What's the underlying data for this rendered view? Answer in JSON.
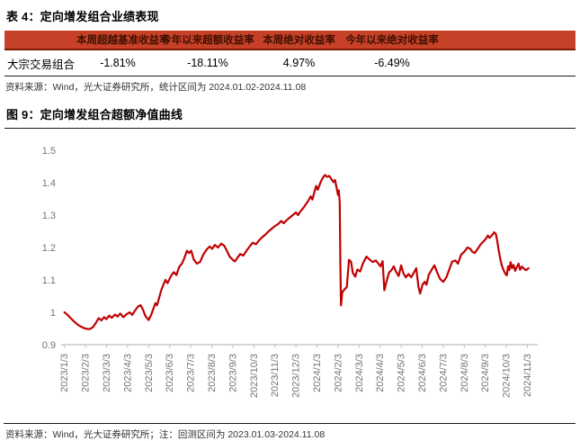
{
  "table": {
    "title": "表 4：定向增发组合业绩表现",
    "columns": [
      "本周超越基准收益率",
      "今年以来超额收益率",
      "本周绝对收益率",
      "今年以来绝对收益率"
    ],
    "rows": [
      {
        "label": "大宗交易组合",
        "values": [
          "-1.81%",
          "-18.11%",
          "4.97%",
          "-6.49%"
        ]
      }
    ],
    "source": "资料来源：Wind，光大证券研究所，统计区间为 2024.01.02-2024.11.08"
  },
  "figure": {
    "title": "图 9：定向增发组合超额净值曲线",
    "source": "资料来源：Wind，光大证券研究所；注：回测区间为 2023.01.03-2024.11.08"
  },
  "colors": {
    "table_header_bg": "#c64127",
    "table_header_border": "#7e1a02",
    "table_header_text": "#3f1000",
    "line": "#c00000",
    "axis": "#bfbfbf",
    "tick_label": "#737373",
    "rule": "#1a1a1a"
  },
  "chart_data": {
    "type": "line",
    "title": "定向增发组合超额净值曲线",
    "xlabel": "",
    "ylabel": "",
    "ylim": [
      0.9,
      1.5
    ],
    "grid": false,
    "legend": "none",
    "y_ticks": [
      {
        "v": 0.9,
        "label": "0.9"
      },
      {
        "v": 1.0,
        "label": "1"
      },
      {
        "v": 1.1,
        "label": "1.1"
      },
      {
        "v": 1.2,
        "label": "1.2"
      },
      {
        "v": 1.3,
        "label": "1.3"
      },
      {
        "v": 1.4,
        "label": "1.4"
      },
      {
        "v": 1.5,
        "label": "1.5"
      }
    ],
    "x_tick_labels": [
      "2023/1/3",
      "2023/2/3",
      "2023/3/3",
      "2023/4/3",
      "2023/5/3",
      "2023/6/3",
      "2023/7/3",
      "2023/8/3",
      "2023/9/3",
      "2023/10/3",
      "2023/11/3",
      "2023/12/3",
      "2024/1/3",
      "2024/2/3",
      "2024/3/3",
      "2024/4/3",
      "2024/5/3",
      "2024/6/3",
      "2024/7/3",
      "2024/8/3",
      "2024/9/3",
      "2024/10/3",
      "2024/11/3"
    ],
    "series": [
      {
        "name": "定向增发组合超额净值",
        "color": "#c00000",
        "points": [
          [
            0.0,
            1.0
          ],
          [
            0.12,
            0.994
          ],
          [
            0.25,
            0.985
          ],
          [
            0.4,
            0.975
          ],
          [
            0.55,
            0.966
          ],
          [
            0.72,
            0.958
          ],
          [
            0.9,
            0.952
          ],
          [
            1.05,
            0.949
          ],
          [
            1.2,
            0.948
          ],
          [
            1.35,
            0.954
          ],
          [
            1.5,
            0.968
          ],
          [
            1.62,
            0.982
          ],
          [
            1.75,
            0.975
          ],
          [
            1.88,
            0.985
          ],
          [
            2.0,
            0.979
          ],
          [
            2.12,
            0.99
          ],
          [
            2.25,
            0.983
          ],
          [
            2.4,
            0.993
          ],
          [
            2.52,
            0.987
          ],
          [
            2.65,
            0.996
          ],
          [
            2.8,
            0.985
          ],
          [
            2.95,
            0.994
          ],
          [
            3.1,
            1.0
          ],
          [
            3.22,
            0.992
          ],
          [
            3.35,
            1.005
          ],
          [
            3.5,
            1.018
          ],
          [
            3.62,
            1.022
          ],
          [
            3.72,
            1.01
          ],
          [
            3.85,
            0.988
          ],
          [
            4.0,
            0.976
          ],
          [
            4.12,
            0.992
          ],
          [
            4.25,
            1.015
          ],
          [
            4.32,
            1.028
          ],
          [
            4.4,
            1.022
          ],
          [
            4.5,
            1.045
          ],
          [
            4.6,
            1.068
          ],
          [
            4.7,
            1.085
          ],
          [
            4.8,
            1.1
          ],
          [
            4.9,
            1.09
          ],
          [
            5.0,
            1.104
          ],
          [
            5.1,
            1.116
          ],
          [
            5.2,
            1.124
          ],
          [
            5.32,
            1.115
          ],
          [
            5.45,
            1.14
          ],
          [
            5.58,
            1.15
          ],
          [
            5.7,
            1.168
          ],
          [
            5.82,
            1.19
          ],
          [
            5.92,
            1.183
          ],
          [
            6.02,
            1.19
          ],
          [
            6.15,
            1.162
          ],
          [
            6.3,
            1.15
          ],
          [
            6.45,
            1.156
          ],
          [
            6.6,
            1.178
          ],
          [
            6.75,
            1.193
          ],
          [
            6.9,
            1.203
          ],
          [
            7.02,
            1.196
          ],
          [
            7.15,
            1.208
          ],
          [
            7.3,
            1.2
          ],
          [
            7.45,
            1.212
          ],
          [
            7.6,
            1.205
          ],
          [
            7.72,
            1.19
          ],
          [
            7.85,
            1.172
          ],
          [
            8.0,
            1.162
          ],
          [
            8.1,
            1.157
          ],
          [
            8.22,
            1.168
          ],
          [
            8.35,
            1.18
          ],
          [
            8.5,
            1.175
          ],
          [
            8.65,
            1.19
          ],
          [
            8.8,
            1.203
          ],
          [
            8.95,
            1.215
          ],
          [
            9.1,
            1.21
          ],
          [
            9.25,
            1.222
          ],
          [
            9.4,
            1.232
          ],
          [
            9.55,
            1.24
          ],
          [
            9.7,
            1.25
          ],
          [
            9.85,
            1.258
          ],
          [
            10.0,
            1.266
          ],
          [
            10.15,
            1.272
          ],
          [
            10.3,
            1.282
          ],
          [
            10.42,
            1.275
          ],
          [
            10.55,
            1.284
          ],
          [
            10.7,
            1.292
          ],
          [
            10.85,
            1.3
          ],
          [
            11.0,
            1.308
          ],
          [
            11.1,
            1.3
          ],
          [
            11.22,
            1.312
          ],
          [
            11.35,
            1.322
          ],
          [
            11.48,
            1.334
          ],
          [
            11.6,
            1.345
          ],
          [
            11.7,
            1.358
          ],
          [
            11.78,
            1.348
          ],
          [
            11.88,
            1.372
          ],
          [
            11.96,
            1.39
          ],
          [
            12.04,
            1.378
          ],
          [
            12.15,
            1.398
          ],
          [
            12.25,
            1.412
          ],
          [
            12.38,
            1.424
          ],
          [
            12.48,
            1.418
          ],
          [
            12.58,
            1.421
          ],
          [
            12.68,
            1.412
          ],
          [
            12.78,
            1.402
          ],
          [
            12.86,
            1.408
          ],
          [
            12.94,
            1.382
          ],
          [
            13.0,
            1.362
          ],
          [
            13.04,
            1.376
          ],
          [
            13.08,
            1.34
          ],
          [
            13.11,
            1.15
          ],
          [
            13.14,
            1.021
          ],
          [
            13.2,
            1.062
          ],
          [
            13.3,
            1.07
          ],
          [
            13.42,
            1.078
          ],
          [
            13.52,
            1.162
          ],
          [
            13.62,
            1.156
          ],
          [
            13.7,
            1.122
          ],
          [
            13.82,
            1.11
          ],
          [
            13.92,
            1.132
          ],
          [
            14.05,
            1.126
          ],
          [
            14.18,
            1.15
          ],
          [
            14.35,
            1.172
          ],
          [
            14.5,
            1.163
          ],
          [
            14.65,
            1.155
          ],
          [
            14.8,
            1.16
          ],
          [
            14.92,
            1.15
          ],
          [
            15.02,
            1.142
          ],
          [
            15.12,
            1.158
          ],
          [
            15.2,
            1.068
          ],
          [
            15.3,
            1.094
          ],
          [
            15.42,
            1.122
          ],
          [
            15.55,
            1.131
          ],
          [
            15.65,
            1.142
          ],
          [
            15.75,
            1.126
          ],
          [
            15.88,
            1.112
          ],
          [
            16.0,
            1.145
          ],
          [
            16.1,
            1.122
          ],
          [
            16.22,
            1.108
          ],
          [
            16.35,
            1.118
          ],
          [
            16.48,
            1.108
          ],
          [
            16.6,
            1.122
          ],
          [
            16.72,
            1.136
          ],
          [
            16.82,
            1.08
          ],
          [
            16.9,
            1.058
          ],
          [
            17.02,
            1.086
          ],
          [
            17.12,
            1.094
          ],
          [
            17.2,
            1.085
          ],
          [
            17.32,
            1.117
          ],
          [
            17.45,
            1.131
          ],
          [
            17.58,
            1.145
          ],
          [
            17.72,
            1.122
          ],
          [
            17.85,
            1.103
          ],
          [
            18.0,
            1.094
          ],
          [
            18.15,
            1.108
          ],
          [
            18.28,
            1.131
          ],
          [
            18.42,
            1.156
          ],
          [
            18.58,
            1.16
          ],
          [
            18.7,
            1.15
          ],
          [
            18.85,
            1.178
          ],
          [
            19.0,
            1.187
          ],
          [
            19.15,
            1.2
          ],
          [
            19.28,
            1.196
          ],
          [
            19.38,
            1.187
          ],
          [
            19.5,
            1.183
          ],
          [
            19.65,
            1.197
          ],
          [
            19.78,
            1.21
          ],
          [
            19.9,
            1.218
          ],
          [
            20.02,
            1.226
          ],
          [
            20.12,
            1.237
          ],
          [
            20.2,
            1.23
          ],
          [
            20.3,
            1.236
          ],
          [
            20.42,
            1.247
          ],
          [
            20.5,
            1.242
          ],
          [
            20.57,
            1.22
          ],
          [
            20.62,
            1.198
          ],
          [
            20.7,
            1.168
          ],
          [
            20.78,
            1.145
          ],
          [
            20.88,
            1.128
          ],
          [
            20.96,
            1.118
          ],
          [
            21.02,
            1.114
          ],
          [
            21.08,
            1.142
          ],
          [
            21.14,
            1.13
          ],
          [
            21.2,
            1.155
          ],
          [
            21.27,
            1.136
          ],
          [
            21.34,
            1.146
          ],
          [
            21.42,
            1.128
          ],
          [
            21.5,
            1.14
          ],
          [
            21.58,
            1.15
          ],
          [
            21.65,
            1.131
          ],
          [
            21.74,
            1.141
          ],
          [
            21.84,
            1.134
          ],
          [
            21.94,
            1.13
          ],
          [
            22.05,
            1.136
          ]
        ]
      }
    ]
  }
}
